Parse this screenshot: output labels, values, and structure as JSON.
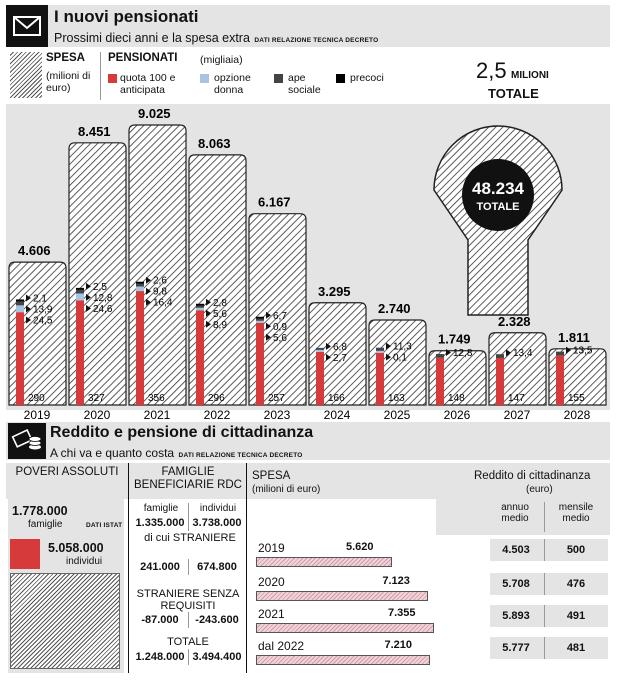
{
  "header": {
    "title": "I nuovi pensionati",
    "subtitle": "Prossimi dieci anni e la spesa extra",
    "source": "DATI RELAZIONE TECNICA DECRETO"
  },
  "legend": {
    "spesa_title": "SPESA",
    "spesa_unit": "(milioni di euro)",
    "pens_title": "PENSIONATI",
    "pens_unit": "(migliaia)",
    "items": [
      {
        "label": "quota 100 e anticipata",
        "color": "#d63a3a"
      },
      {
        "label": "opzione donna",
        "color": "#a9c4e0"
      },
      {
        "label": "ape sociale",
        "color": "#444444"
      },
      {
        "label": "precoci",
        "color": "#000000"
      }
    ],
    "total_value": "2,5",
    "total_unit": "MILIONI",
    "total_label": "TOTALE"
  },
  "arrow_total": {
    "value": "48.234",
    "label": "TOTALE"
  },
  "chart_data": {
    "type": "bar",
    "categories": [
      "2019",
      "2020",
      "2021",
      "2022",
      "2023",
      "2024",
      "2025",
      "2026",
      "2027",
      "2028"
    ],
    "spesa": [
      4606,
      8451,
      9025,
      8063,
      6167,
      3295,
      2740,
      1749,
      2328,
      1811
    ],
    "spesa_labels": [
      "4.606",
      "8.451",
      "9.025",
      "8.063",
      "6.167",
      "3.295",
      "2.740",
      "1.749",
      "2.328",
      "1.811"
    ],
    "series": [
      {
        "name": "quota 100 e anticipata",
        "values": [
          290,
          327,
          356,
          296,
          257,
          166,
          163,
          148,
          147,
          155
        ]
      },
      {
        "name": "opzione donna",
        "values": [
          24.5,
          24.6,
          16.4,
          8.9,
          5.6,
          2.7,
          0.1,
          null,
          null,
          null
        ]
      },
      {
        "name": "ape sociale",
        "values": [
          13.9,
          12.8,
          9.8,
          5.6,
          0.9,
          6.8,
          11.3,
          12.8,
          13.4,
          13.5
        ]
      },
      {
        "name": "precoci",
        "values": [
          2.1,
          2.5,
          2.6,
          2.8,
          6.7,
          null,
          null,
          null,
          null,
          null
        ]
      }
    ],
    "small_labels": [
      [
        "2,1",
        "13,9",
        "24,5"
      ],
      [
        "2,5",
        "12,8",
        "24,6"
      ],
      [
        "2,6",
        "9,8",
        "16,4"
      ],
      [
        "2,8",
        "5,6",
        "8,9"
      ],
      [
        "6,7",
        "0,9",
        "5,6"
      ],
      [
        "6,8",
        "2,7"
      ],
      [
        "11,3",
        "0,1"
      ],
      [
        "12,8"
      ],
      [
        "13,4"
      ],
      [
        "13,5"
      ]
    ],
    "ylim": [
      0,
      10000
    ]
  },
  "section2": {
    "title": "Reddito e pensione di cittadinanza",
    "subtitle": "A chi va e quanto costa",
    "source": "DATI RELAZIONE TECNICA DECRETO"
  },
  "table": {
    "poveri_header": "POVERI ASSOLUTI",
    "poveri_fam_value": "1.778.000",
    "poveri_fam_label": "famiglie",
    "poveri_source": "DATI ISTAT",
    "poveri_ind_value": "5.058.000",
    "poveri_ind_label": "individui",
    "famiglie_header": "FAMIGLIE BENEFICIARIE RDC",
    "col_fam": "famiglie",
    "col_ind": "individui",
    "main_fam": "1.335.000",
    "main_ind": "3.738.000",
    "stranieri_label": "di cui STRANIERE",
    "stranieri_fam": "241.000",
    "stranieri_ind": "674.800",
    "senza_label": "STRANIERE SENZA REQUISITI",
    "senza_fam": "-87.000",
    "senza_ind": "-243.600",
    "totale_label": "TOTALE",
    "totale_fam": "1.248.000",
    "totale_ind": "3.494.400",
    "spesa_header": "SPESA",
    "spesa_unit": "(milioni di euro)",
    "reddito_header": "Reddito di cittadinanza",
    "reddito_unit": "(euro)",
    "col_annuo": "annuo medio",
    "col_mensile": "mensile medio",
    "rows": [
      {
        "year": "2019",
        "spesa": 5620,
        "spesa_label": "5.620",
        "annuo": "4.503",
        "mensile": "500"
      },
      {
        "year": "2020",
        "spesa": 7123,
        "spesa_label": "7.123",
        "annuo": "5.708",
        "mensile": "476"
      },
      {
        "year": "2021",
        "spesa": 7355,
        "spesa_label": "7.355",
        "annuo": "5.893",
        "mensile": "491"
      },
      {
        "year": "dal 2022",
        "spesa": 7210,
        "spesa_label": "7.210",
        "annuo": "5.777",
        "mensile": "481"
      }
    ]
  }
}
